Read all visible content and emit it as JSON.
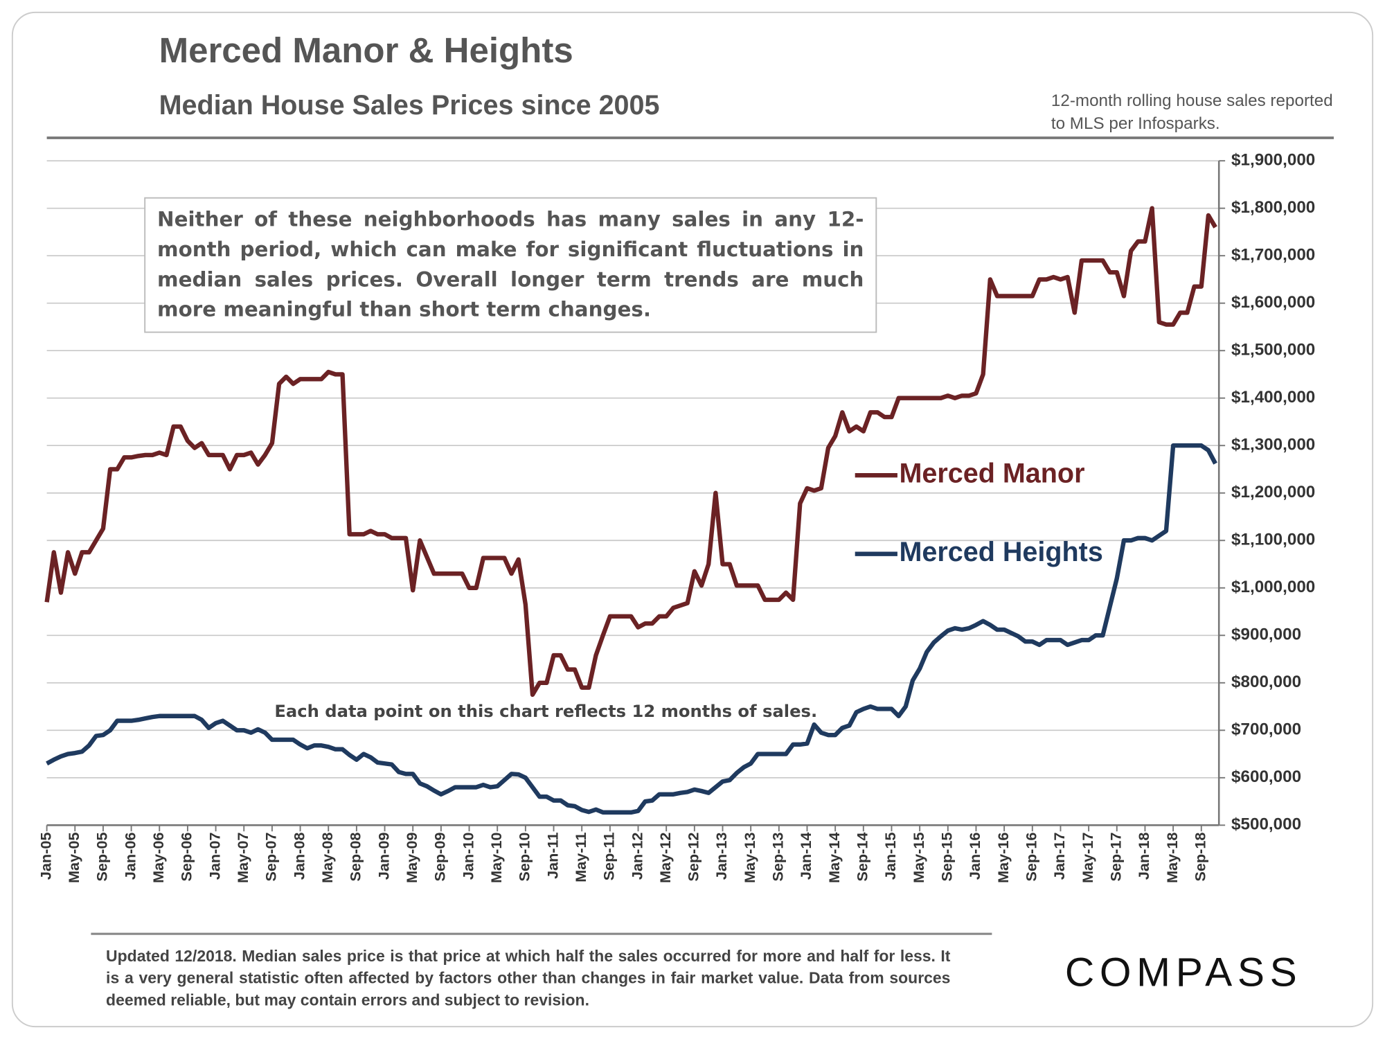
{
  "chart_data": {
    "type": "line",
    "title": "Merced Manor & Heights",
    "subtitle": "Median House Sales Prices since 2005",
    "note": "12-month rolling house sales reported to MLS per Infosparks.",
    "annotations": [
      "Neither of these neighborhoods has many sales in any 12-month period, which can make for significant fluctuations in median sales prices. Overall longer term trends are much more meaningful than short term changes.",
      "Each data point on this chart reflects 12 months of sales."
    ],
    "categories": [
      "Jan-05",
      null,
      null,
      null,
      "May-05",
      null,
      null,
      null,
      "Sep-05",
      null,
      null,
      null,
      "Jan-06",
      null,
      null,
      null,
      "May-06",
      null,
      null,
      null,
      "Sep-06",
      null,
      null,
      null,
      "Jan-07",
      null,
      null,
      null,
      "May-07",
      null,
      null,
      null,
      "Sep-07",
      null,
      null,
      null,
      "Jan-08",
      null,
      null,
      null,
      "May-08",
      null,
      null,
      null,
      "Sep-08",
      null,
      null,
      null,
      "Jan-09",
      null,
      null,
      null,
      "May-09",
      null,
      null,
      null,
      "Sep-09",
      null,
      null,
      null,
      "Jan-10",
      null,
      null,
      null,
      "May-10",
      null,
      null,
      null,
      "Sep-10",
      null,
      null,
      null,
      "Jan-11",
      null,
      null,
      null,
      "May-11",
      null,
      null,
      null,
      "Sep-11",
      null,
      null,
      null,
      "Jan-12",
      null,
      null,
      null,
      "May-12",
      null,
      null,
      null,
      "Sep-12",
      null,
      null,
      null,
      "Jan-13",
      null,
      null,
      null,
      "May-13",
      null,
      null,
      null,
      "Sep-13",
      null,
      null,
      null,
      "Jan-14",
      null,
      null,
      null,
      "May-14",
      null,
      null,
      null,
      "Sep-14",
      null,
      null,
      null,
      "Jan-15",
      null,
      null,
      null,
      "May-15",
      null,
      null,
      null,
      "Sep-15",
      null,
      null,
      null,
      "Jan-16",
      null,
      null,
      null,
      "May-16",
      null,
      null,
      null,
      "Sep-16",
      null,
      null,
      null,
      "Jan-17",
      null,
      null,
      null,
      "May-17",
      null,
      null,
      null,
      "Sep-17",
      null,
      null,
      null,
      "Jan-18",
      null,
      null,
      null,
      "May-18",
      null,
      null,
      null,
      "Sep-18",
      null,
      null
    ],
    "series": [
      {
        "name": "Merced Manor",
        "color": "#6b2224",
        "values": [
          970000,
          1075000,
          990000,
          1075000,
          1030000,
          1075000,
          1075000,
          1100000,
          1125000,
          1250000,
          1250000,
          1275000,
          1275000,
          1278000,
          1280000,
          1280000,
          1285000,
          1280000,
          1340000,
          1340000,
          1310000,
          1295000,
          1305000,
          1280000,
          1280000,
          1280000,
          1250000,
          1280000,
          1280000,
          1285000,
          1260000,
          1280000,
          1305000,
          1430000,
          1445000,
          1430000,
          1440000,
          1440000,
          1440000,
          1440000,
          1455000,
          1450000,
          1450000,
          1113000,
          1113000,
          1113000,
          1120000,
          1113000,
          1113000,
          1105000,
          1105000,
          1105000,
          995000,
          1100000,
          1065000,
          1030000,
          1030000,
          1030000,
          1030000,
          1030000,
          1000000,
          1000000,
          1063000,
          1063000,
          1063000,
          1063000,
          1030000,
          1060000,
          965000,
          775000,
          800000,
          800000,
          858000,
          858000,
          828000,
          828000,
          790000,
          790000,
          858000,
          900000,
          940000,
          940000,
          940000,
          940000,
          917000,
          925000,
          925000,
          940000,
          940000,
          958000,
          963000,
          968000,
          1035000,
          1005000,
          1050000,
          1200000,
          1050000,
          1050000,
          1005000,
          1005000,
          1005000,
          1005000,
          975000,
          975000,
          975000,
          990000,
          975000,
          1178000,
          1210000,
          1205000,
          1210000,
          1295000,
          1320000,
          1370000,
          1330000,
          1340000,
          1330000,
          1370000,
          1370000,
          1360000,
          1360000,
          1400000,
          1400000,
          1400000,
          1400000,
          1400000,
          1400000,
          1400000,
          1405000,
          1400000,
          1405000,
          1405000,
          1410000,
          1450000,
          1650000,
          1615000,
          1615000,
          1615000,
          1615000,
          1615000,
          1615000,
          1650000,
          1650000,
          1655000,
          1650000,
          1655000,
          1580000,
          1690000,
          1690000,
          1690000,
          1690000,
          1665000,
          1665000,
          1615000,
          1710000,
          1730000,
          1730000,
          1800000,
          1560000,
          1555000,
          1555000,
          1580000,
          1580000,
          1635000,
          1635000,
          1785000,
          1760000
        ]
      },
      {
        "name": "Merced Heights",
        "color": "#1f3a5f",
        "values": [
          630000,
          638000,
          645000,
          650000,
          652000,
          655000,
          668000,
          688000,
          690000,
          700000,
          720000,
          720000,
          720000,
          722000,
          725000,
          728000,
          730000,
          730000,
          730000,
          730000,
          730000,
          730000,
          722000,
          705000,
          715000,
          720000,
          710000,
          700000,
          700000,
          695000,
          702000,
          695000,
          680000,
          680000,
          680000,
          680000,
          670000,
          662000,
          668000,
          668000,
          665000,
          660000,
          660000,
          648000,
          638000,
          650000,
          643000,
          632000,
          630000,
          628000,
          612000,
          608000,
          608000,
          588000,
          582000,
          573000,
          565000,
          572000,
          580000,
          580000,
          580000,
          580000,
          585000,
          580000,
          582000,
          595000,
          608000,
          607000,
          600000,
          580000,
          560000,
          560000,
          552000,
          552000,
          542000,
          540000,
          532000,
          528000,
          533000,
          527000,
          527000,
          527000,
          527000,
          527000,
          530000,
          550000,
          552000,
          565000,
          565000,
          565000,
          568000,
          570000,
          575000,
          572000,
          568000,
          580000,
          592000,
          595000,
          610000,
          622000,
          630000,
          650000,
          650000,
          650000,
          650000,
          650000,
          670000,
          670000,
          672000,
          712000,
          695000,
          690000,
          690000,
          705000,
          710000,
          738000,
          745000,
          750000,
          745000,
          745000,
          745000,
          730000,
          750000,
          805000,
          830000,
          865000,
          885000,
          898000,
          910000,
          915000,
          912000,
          915000,
          922000,
          930000,
          922000,
          912000,
          912000,
          905000,
          898000,
          887000,
          887000,
          880000,
          890000,
          890000,
          890000,
          880000,
          885000,
          890000,
          890000,
          900000,
          900000,
          960000,
          1020000,
          1100000,
          1100000,
          1105000,
          1105000,
          1100000,
          1110000,
          1120000,
          1300000,
          1300000,
          1300000,
          1300000,
          1300000,
          1290000,
          1262000
        ]
      }
    ],
    "ylim": [
      500000,
      1900000
    ],
    "yticks": [
      {
        "value": 500000,
        "label": "$500,000"
      },
      {
        "value": 600000,
        "label": "$600,000"
      },
      {
        "value": 700000,
        "label": "$700,000"
      },
      {
        "value": 800000,
        "label": "$800,000"
      },
      {
        "value": 900000,
        "label": "$900,000"
      },
      {
        "value": 1000000,
        "label": "$1,000,000"
      },
      {
        "value": 1100000,
        "label": "$1,100,000"
      },
      {
        "value": 1200000,
        "label": "$1,200,000"
      },
      {
        "value": 1300000,
        "label": "$1,300,000"
      },
      {
        "value": 1400000,
        "label": "$1,400,000"
      },
      {
        "value": 1500000,
        "label": "$1,500,000"
      },
      {
        "value": 1600000,
        "label": "$1,600,000"
      },
      {
        "value": 1700000,
        "label": "$1,700,000"
      },
      {
        "value": 1800000,
        "label": "$1,800,000"
      },
      {
        "value": 1900000,
        "label": "$1,900,000"
      }
    ],
    "grid": true
  },
  "footer": "Updated 12/2018. Median sales price is that price at which half the sales occurred for more and half for less. It is a very general statistic often affected by factors other than changes in fair market value. Data from sources deemed reliable, but may contain errors and subject to revision.",
  "brand": "COMPASS"
}
